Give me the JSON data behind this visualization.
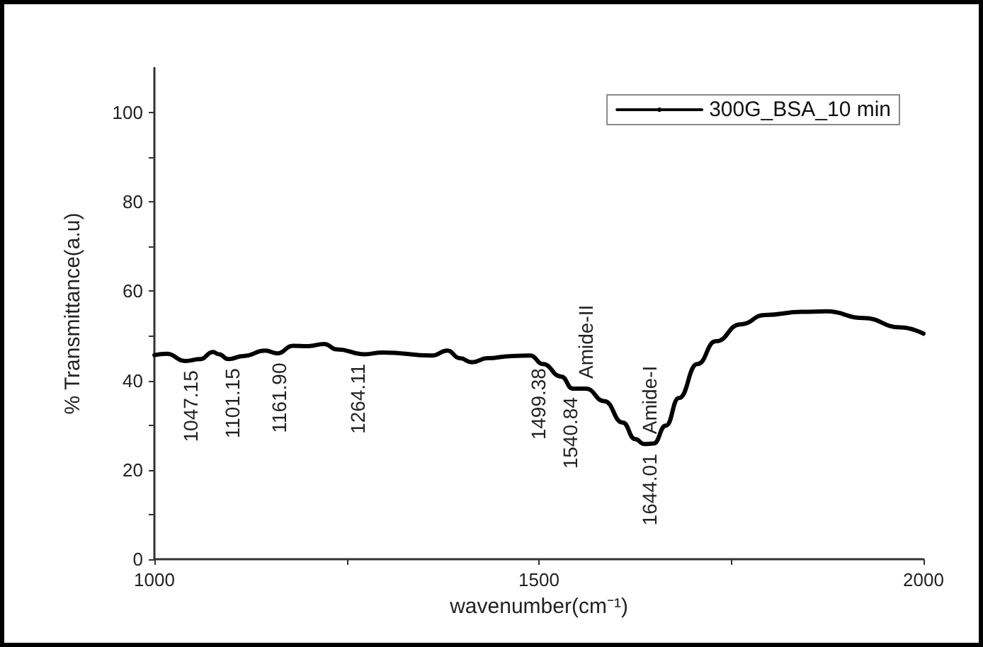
{
  "chart_data": {
    "type": "line",
    "xlabel": "wavenumber(cm⁻¹)",
    "ylabel": "% Transmittance(a.u)",
    "xlim": [
      1000,
      2000
    ],
    "ylim": [
      0,
      110
    ],
    "xticks": [
      1000,
      {
        "value": 1250,
        "label": null
      },
      1500,
      {
        "value": 1750,
        "label": null
      },
      2000
    ],
    "yticks": [
      0,
      {
        "value": 10,
        "label": null
      },
      20,
      {
        "value": 30,
        "label": null
      },
      40,
      {
        "value": 50,
        "label": null
      },
      60,
      {
        "value": 70,
        "label": null
      },
      80,
      {
        "value": 90,
        "label": null
      },
      100
    ],
    "legend": "top right",
    "x": [
      1000,
      1016,
      1040,
      1060,
      1076,
      1084,
      1096,
      1116,
      1144,
      1160,
      1180,
      1200,
      1221,
      1237,
      1273,
      1297,
      1361,
      1381,
      1397,
      1413,
      1433,
      1465,
      1489,
      1505,
      1529,
      1544,
      1561,
      1585,
      1609,
      1625,
      1637,
      1649,
      1665,
      1682,
      1706,
      1730,
      1762,
      1794,
      1842,
      1874,
      1922,
      1970,
      2000
    ],
    "series": [
      {
        "name": "300G_BSA_10 min",
        "color": "#000000",
        "values": [
          45.7,
          46,
          44.4,
          44.8,
          46.4,
          45.9,
          44.8,
          45.5,
          46.7,
          46.1,
          47.8,
          47.7,
          48.2,
          47,
          45.9,
          46.3,
          45.6,
          46.7,
          45,
          44.1,
          45,
          45.5,
          45.6,
          43.7,
          40.9,
          38.2,
          38.2,
          35.4,
          30.6,
          26.9,
          25.8,
          25.9,
          29.9,
          36.1,
          43.7,
          48.8,
          52.6,
          54.7,
          55.4,
          55.5,
          54,
          51.9,
          50.5
        ]
      }
    ],
    "annotations": [
      {
        "text": "1047.15",
        "x": 1047.15,
        "y": 44.5
      },
      {
        "text": "1101.15",
        "x": 1101.15,
        "y": 45
      },
      {
        "text": "1161.90",
        "x": 1161.9,
        "y": 46.2
      },
      {
        "text": "1264.11",
        "x": 1264.11,
        "y": 46
      },
      {
        "text": "1499.38",
        "x": 1499.38,
        "y": 45
      },
      {
        "text": "1540.84",
        "x": 1540.84,
        "y": 38.5
      },
      {
        "text": "1644.01",
        "x": 1644.01,
        "y": 25.8
      },
      {
        "text": "Amide-II",
        "x": 1561,
        "y": 38.2
      },
      {
        "text": "Amide-I",
        "x": 1644.01,
        "y": 25.8
      }
    ]
  }
}
